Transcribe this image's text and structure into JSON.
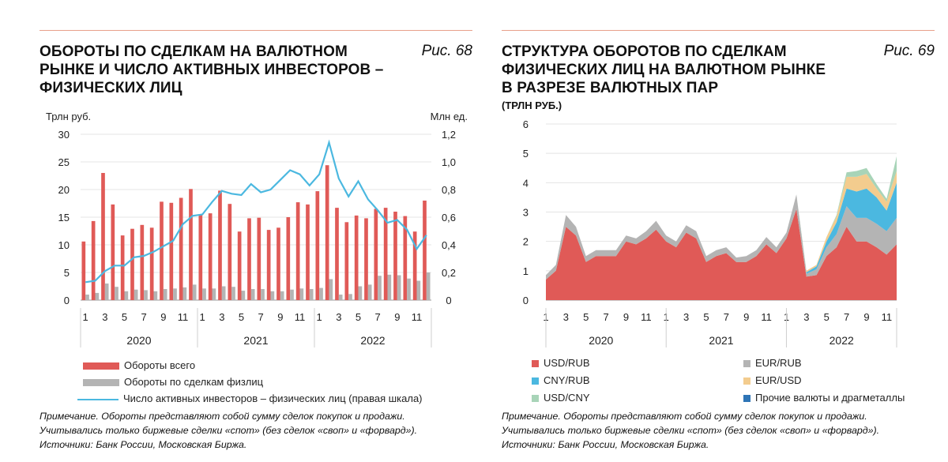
{
  "panel1": {
    "title_lines": [
      "ОБОРОТЫ ПО СДЕЛКАМ НА ВАЛЮТНОМ",
      "РЫНКЕ И ЧИСЛО АКТИВНЫХ ИНВЕСТОРОВ –",
      "ФИЗИЧЕСКИХ ЛИЦ"
    ],
    "fig": "Рис. 68",
    "left_unit": "Трлн  руб.",
    "right_unit": "Млн ед.",
    "note_lines": [
      "Примечание. Обороты представляют собой сумму сделок покупок и продажи.",
      "Учитывались только биржевые сделки «спот» (без сделок «своп» и «форвард»).",
      "Источники: Банк России, Московская Биржа."
    ]
  },
  "panel2": {
    "title_lines": [
      "СТРУКТУРА ОБОРОТОВ ПО СДЕЛКАМ",
      "ФИЗИЧЕСКИХ ЛИЦ НА ВАЛЮТНОМ РЫНКЕ",
      "В РАЗРЕЗЕ ВАЛЮТНЫХ ПАР"
    ],
    "subtitle": "(ТРЛН РУБ.)",
    "fig": "Рис. 69",
    "note_lines": [
      "Примечание. Обороты представляют собой сумму сделок покупок и продажи.",
      "Учитывались только биржевые сделки «спот» (без сделок «своп» и «форвард»).",
      "Источники: Банк России, Московская Биржа."
    ]
  },
  "chart_data": [
    {
      "type": "bar",
      "month_ticks": [
        "1",
        "3",
        "5",
        "7",
        "9",
        "11",
        "1",
        "3",
        "5",
        "7",
        "9",
        "11",
        "1",
        "3",
        "5",
        "7",
        "9",
        "11"
      ],
      "years": [
        "2020",
        "2021",
        "2022"
      ],
      "y_left_ticks": [
        "0",
        "5",
        "10",
        "15",
        "20",
        "25",
        "30"
      ],
      "y_right_ticks": [
        "0",
        "0,2",
        "0,4",
        "0,6",
        "0,8",
        "1,0",
        "1,2"
      ],
      "ylim_left": [
        0,
        30
      ],
      "ylim_right": [
        0,
        1.2
      ],
      "series": [
        {
          "name": "Обороты всего",
          "axis": "left",
          "color": "#e05a57",
          "values": [
            10.6,
            14.3,
            23,
            17.3,
            11.7,
            12.9,
            13.6,
            13.1,
            17.8,
            17.6,
            18.5,
            20.1,
            15.4,
            15.7,
            19.8,
            17.4,
            12.4,
            14.8,
            14.9,
            12.7,
            13.1,
            15,
            17.7,
            17.3,
            19.7,
            24.4,
            16.7,
            14.1,
            15.3,
            14.8,
            16.5,
            16.7,
            16,
            15.2,
            12.4,
            18
          ]
        },
        {
          "name": "Обороты по сделкам физлиц",
          "axis": "left",
          "color": "#b4b4b4",
          "values": [
            1,
            1.3,
            3,
            2.4,
            1.6,
            1.9,
            1.8,
            1.6,
            2,
            2.1,
            2.3,
            2.8,
            2.1,
            2.1,
            2.5,
            2.4,
            1.7,
            2,
            2,
            1.6,
            1.6,
            1.9,
            2.1,
            2,
            2.2,
            3.8,
            1,
            1.1,
            2.5,
            2.8,
            4.4,
            4.6,
            4.5,
            3.9,
            3.5,
            5
          ]
        },
        {
          "name": "Число активных инвесторов – физических лиц (правая шкала)",
          "axis": "right",
          "color": "#4bb8e0",
          "values": [
            0.13,
            0.14,
            0.21,
            0.25,
            0.25,
            0.31,
            0.32,
            0.35,
            0.39,
            0.43,
            0.55,
            0.61,
            0.62,
            0.71,
            0.79,
            0.77,
            0.76,
            0.84,
            0.78,
            0.8,
            0.87,
            0.94,
            0.91,
            0.83,
            0.91,
            1.14,
            0.88,
            0.75,
            0.86,
            0.73,
            0.65,
            0.56,
            0.58,
            0.51,
            0.37,
            0.47
          ]
        }
      ]
    },
    {
      "type": "area",
      "stacked": true,
      "month_ticks": [
        "1",
        "3",
        "5",
        "7",
        "9",
        "11",
        "1",
        "3",
        "5",
        "7",
        "9",
        "11",
        "1",
        "3",
        "5",
        "7",
        "9",
        "11"
      ],
      "years": [
        "2020",
        "2021",
        "2022"
      ],
      "y_ticks": [
        "0",
        "1",
        "2",
        "3",
        "4",
        "5",
        "6"
      ],
      "ylim": [
        0,
        6
      ],
      "series": [
        {
          "name": "USD/RUB",
          "color": "#e05a57",
          "values": [
            0.7,
            1,
            2.5,
            2.2,
            1.3,
            1.5,
            1.5,
            1.5,
            2,
            1.9,
            2.1,
            2.4,
            2,
            1.8,
            2.3,
            2.1,
            1.3,
            1.5,
            1.6,
            1.3,
            1.3,
            1.5,
            1.9,
            1.6,
            2.1,
            3.1,
            0.8,
            0.85,
            1.5,
            1.8,
            2.5,
            2,
            2,
            1.8,
            1.55,
            1.9
          ]
        },
        {
          "name": "EUR/RUB",
          "color": "#b4b4b4",
          "values": [
            0.15,
            0.2,
            0.4,
            0.3,
            0.2,
            0.2,
            0.2,
            0.2,
            0.2,
            0.2,
            0.25,
            0.3,
            0.2,
            0.2,
            0.25,
            0.25,
            0.2,
            0.2,
            0.2,
            0.15,
            0.2,
            0.2,
            0.25,
            0.2,
            0.2,
            0.5,
            0.1,
            0.2,
            0.3,
            0.45,
            0.7,
            0.8,
            0.8,
            0.8,
            0.8,
            0.9
          ]
        },
        {
          "name": "CNY/RUB",
          "color": "#4bb8e0",
          "values": [
            0,
            0,
            0,
            0,
            0,
            0,
            0,
            0,
            0,
            0,
            0,
            0,
            0,
            0,
            0,
            0,
            0,
            0,
            0,
            0,
            0,
            0,
            0,
            0,
            0,
            0,
            0.05,
            0.1,
            0.2,
            0.4,
            0.6,
            0.9,
            1,
            0.9,
            0.7,
            1.2
          ]
        },
        {
          "name": "EUR/USD",
          "color": "#f3cc8e",
          "values": [
            0,
            0,
            0,
            0,
            0,
            0,
            0,
            0,
            0,
            0,
            0,
            0,
            0,
            0,
            0,
            0,
            0,
            0,
            0,
            0,
            0,
            0,
            0,
            0,
            0,
            0,
            0.05,
            0.05,
            0.15,
            0.2,
            0.4,
            0.5,
            0.5,
            0.3,
            0.3,
            0.4
          ]
        },
        {
          "name": "USD/CNY",
          "color": "#a8d4b8",
          "values": [
            0,
            0,
            0,
            0,
            0,
            0,
            0,
            0,
            0,
            0,
            0,
            0,
            0,
            0,
            0,
            0,
            0,
            0,
            0,
            0,
            0,
            0,
            0,
            0,
            0,
            0,
            0,
            0,
            0,
            0.05,
            0.15,
            0.2,
            0.2,
            0.15,
            0.1,
            0.5
          ]
        },
        {
          "name": "Прочие валюты и драгметаллы",
          "color": "#2e75b6",
          "values": [
            0,
            0,
            0,
            0,
            0,
            0,
            0,
            0,
            0,
            0,
            0,
            0,
            0,
            0,
            0,
            0,
            0,
            0,
            0,
            0,
            0,
            0,
            0,
            0,
            0,
            0,
            0,
            0,
            0,
            0,
            0,
            0,
            0,
            0,
            0,
            0
          ]
        }
      ]
    }
  ]
}
